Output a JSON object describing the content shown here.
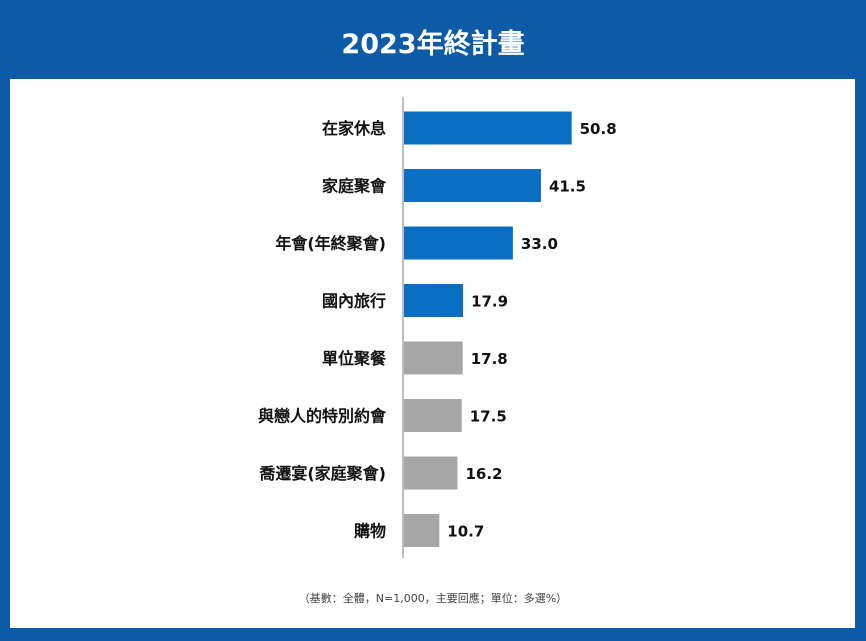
{
  "header": {
    "title": "2023年終計畫"
  },
  "footnote": "（基數：全體，N=1,000，主要回應；單位：多選%）",
  "colors": {
    "highlight": "#0a6fc2",
    "other": "#a6a6a6",
    "axis": "#7f7f7f",
    "frame": "#0d5aa7"
  },
  "chart_data": {
    "type": "bar",
    "orientation": "horizontal",
    "title": "2023年終計畫",
    "categories": [
      "在家休息",
      "家庭聚會",
      "年會(年終聚會)",
      "國內旅行",
      "單位聚餐",
      "與戀人的特別約會",
      "喬遷宴(家庭聚會)",
      "購物"
    ],
    "values": [
      50.8,
      41.5,
      33.0,
      17.9,
      17.8,
      17.5,
      16.2,
      10.7
    ],
    "value_labels": [
      "50.8",
      "41.5",
      "33.0",
      "17.9",
      "17.8",
      "17.5",
      "16.2",
      "10.7"
    ],
    "highlighted": [
      true,
      true,
      true,
      true,
      false,
      false,
      false,
      false
    ],
    "xlim": [
      0,
      60
    ],
    "grid": false,
    "legend": "none"
  }
}
